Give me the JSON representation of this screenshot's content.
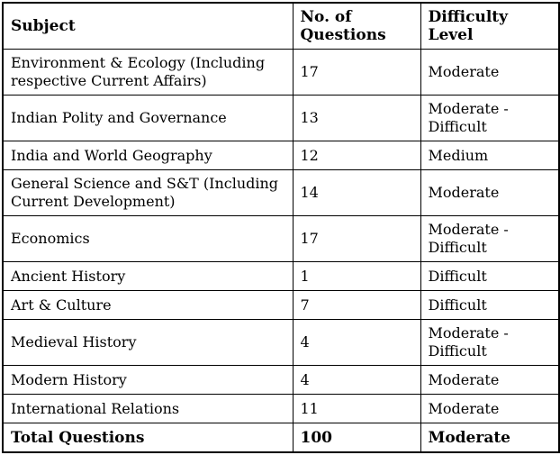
{
  "colors": {
    "background": "#ffffff",
    "border": "#000000",
    "text": "#000000"
  },
  "table": {
    "columns": [
      "Subject",
      "No. of Questions",
      "Difficulty Level"
    ],
    "rows": [
      {
        "subject": "Environment & Ecology (Including respective Current Affairs)",
        "questions": "17",
        "difficulty": "Moderate"
      },
      {
        "subject": "Indian Polity and Governance",
        "questions": "13",
        "difficulty": "Moderate - Difficult"
      },
      {
        "subject": "India and World Geography",
        "questions": "12",
        "difficulty": "Medium"
      },
      {
        "subject": "General Science and S&T (Including Current Development)",
        "questions": "14",
        "difficulty": "Moderate"
      },
      {
        "subject": "Economics",
        "questions": "17",
        "difficulty": "Moderate - Difficult"
      },
      {
        "subject": "Ancient History",
        "questions": "1",
        "difficulty": "Difficult"
      },
      {
        "subject": "Art & Culture",
        "questions": "7",
        "difficulty": "Difficult"
      },
      {
        "subject": "Medieval History",
        "questions": "4",
        "difficulty": "Moderate - Difficult"
      },
      {
        "subject": "Modern History",
        "questions": "4",
        "difficulty": "Moderate"
      },
      {
        "subject": "International Relations",
        "questions": "11",
        "difficulty": "Moderate"
      },
      {
        "subject": "Total Questions",
        "questions": "100",
        "difficulty": "Moderate"
      }
    ]
  }
}
